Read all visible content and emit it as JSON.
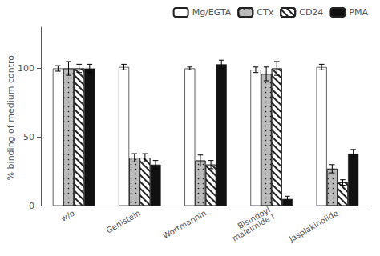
{
  "chart_data": {
    "type": "bar",
    "categories": [
      "w/o",
      "Genistein",
      "Wortmannin",
      "Bisindoyl\nmaleimide I",
      "Jasplakinolide"
    ],
    "series": [
      {
        "name": "Mg/EGTA",
        "color": "#ffffff",
        "values": [
          100,
          101,
          100,
          99,
          101
        ],
        "errors": [
          2,
          2,
          1,
          2,
          2
        ]
      },
      {
        "name": "CTx",
        "color": "#bbbbbb",
        "values": [
          100,
          35,
          33,
          96,
          27
        ],
        "errors": [
          5,
          3,
          4,
          5,
          3
        ]
      },
      {
        "name": "CD24",
        "color": "#ffffff",
        "values": [
          100,
          35,
          30,
          100,
          17
        ],
        "errors": [
          3,
          3,
          3,
          5,
          2
        ]
      },
      {
        "name": "PMA",
        "color": "#111111",
        "values": [
          100,
          30,
          103,
          5,
          38
        ],
        "errors": [
          3,
          3,
          3,
          2,
          3
        ]
      }
    ],
    "ylabel": "% binding of medium control",
    "ylim": [
      0,
      130
    ],
    "yticks": [
      0,
      50,
      100
    ],
    "grid": false,
    "legend": "upper right"
  }
}
